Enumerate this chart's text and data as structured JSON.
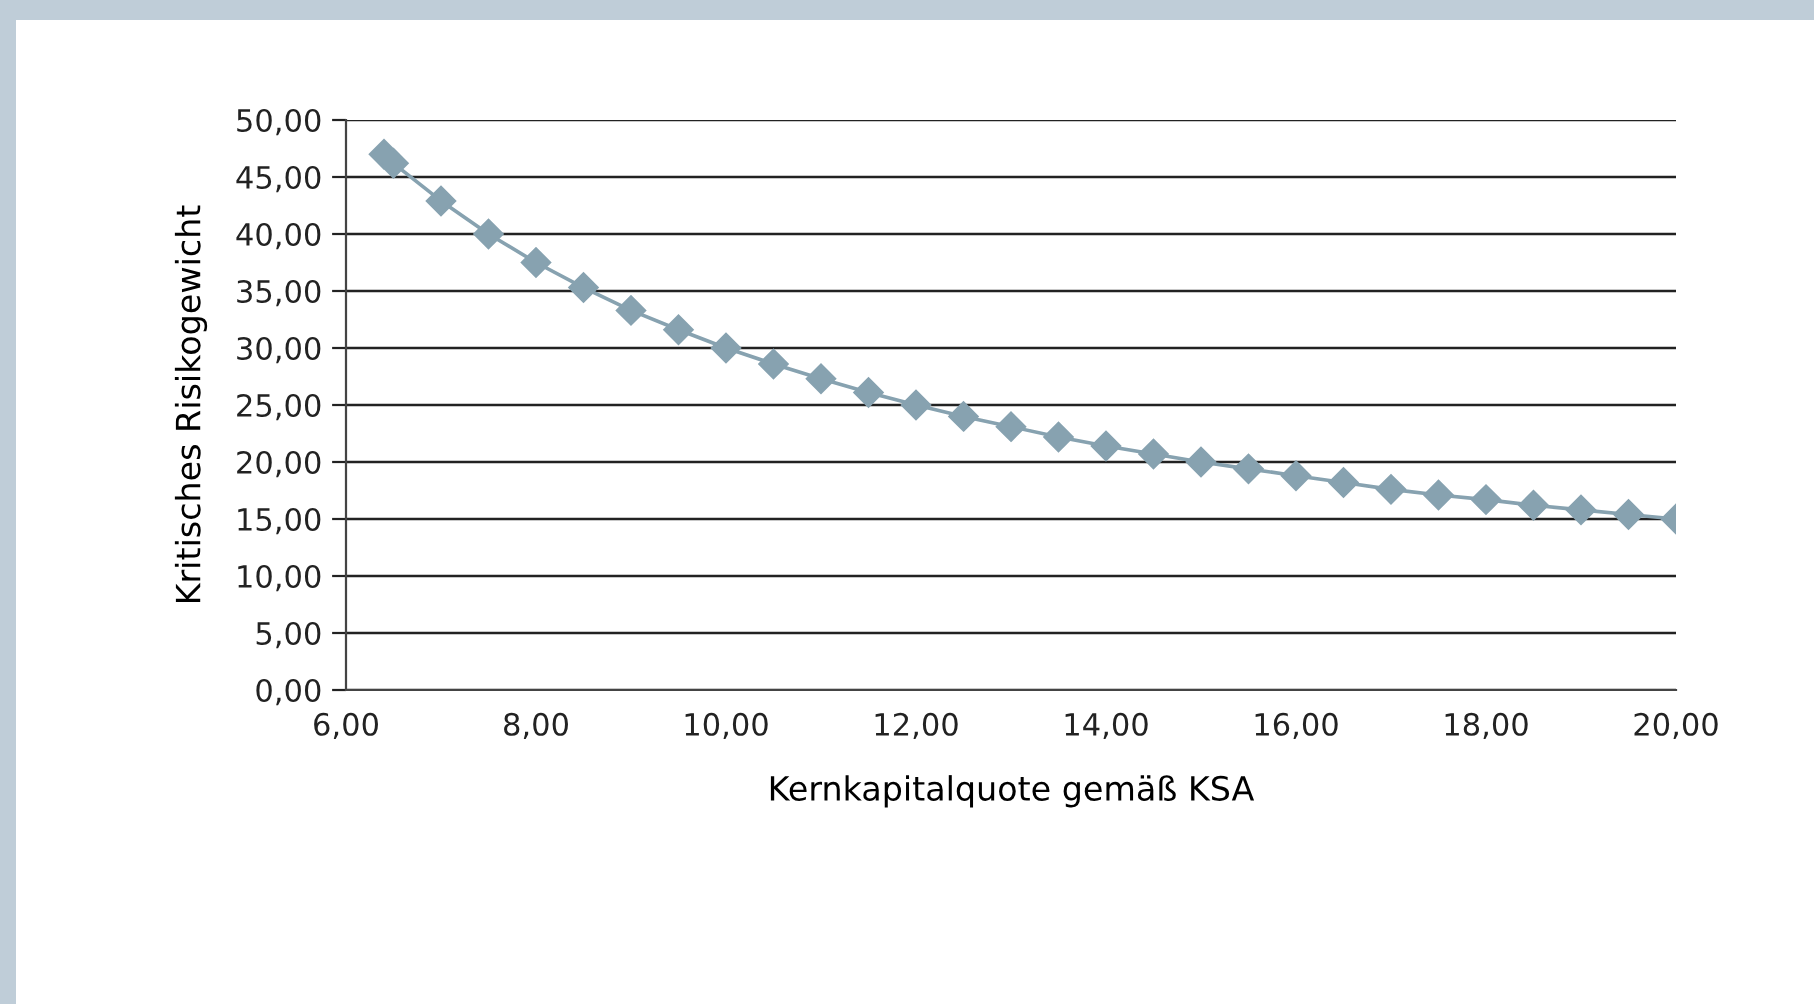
{
  "chart_data": {
    "type": "line",
    "xlabel": "Kernkapitalquote gemäß KSA",
    "ylabel": "Kritisches Risikogewicht",
    "x": [
      6.4,
      6.5,
      7,
      7.5,
      8,
      8.5,
      9,
      9.5,
      10,
      10.5,
      11,
      11.5,
      12,
      12.5,
      13,
      13.5,
      14,
      14.5,
      15,
      15.5,
      16,
      16.5,
      17,
      17.5,
      18,
      18.5,
      19,
      19.5,
      20
    ],
    "series": [
      {
        "color": "#87a2b0",
        "values": [
          47.0,
          46.2,
          42.9,
          40.0,
          37.5,
          35.3,
          33.3,
          31.6,
          30.0,
          28.6,
          27.3,
          26.1,
          25.0,
          24.0,
          23.1,
          22.2,
          21.4,
          20.7,
          20.0,
          19.4,
          18.8,
          18.2,
          17.6,
          17.1,
          16.7,
          16.2,
          15.8,
          15.4,
          15.0
        ]
      }
    ],
    "xlim": [
      6,
      20
    ],
    "xticks": [
      {
        "value": 6,
        "label": "6,00"
      },
      {
        "value": 8,
        "label": "8,00"
      },
      {
        "value": 10,
        "label": "10,00"
      },
      {
        "value": 12,
        "label": "12,00"
      },
      {
        "value": 14,
        "label": "14,00"
      },
      {
        "value": 16,
        "label": "16,00"
      },
      {
        "value": 18,
        "label": "18,00"
      },
      {
        "value": 20,
        "label": "20,00"
      }
    ],
    "ylim": [
      0,
      50
    ],
    "yticks": [
      {
        "value": 0,
        "label": "0,00"
      },
      {
        "value": 5,
        "label": "5,00"
      },
      {
        "value": 10,
        "label": "10,00"
      },
      {
        "value": 15,
        "label": "15,00"
      },
      {
        "value": 20,
        "label": "20,00"
      },
      {
        "value": 25,
        "label": "25,00"
      },
      {
        "value": 30,
        "label": "30,00"
      },
      {
        "value": 35,
        "label": "35,00"
      },
      {
        "value": 40,
        "label": "40,00"
      },
      {
        "value": 45,
        "label": "45,00"
      },
      {
        "value": 50,
        "label": "50,00"
      }
    ],
    "grid": "y",
    "marker": "diamond",
    "line_style": "solid"
  }
}
